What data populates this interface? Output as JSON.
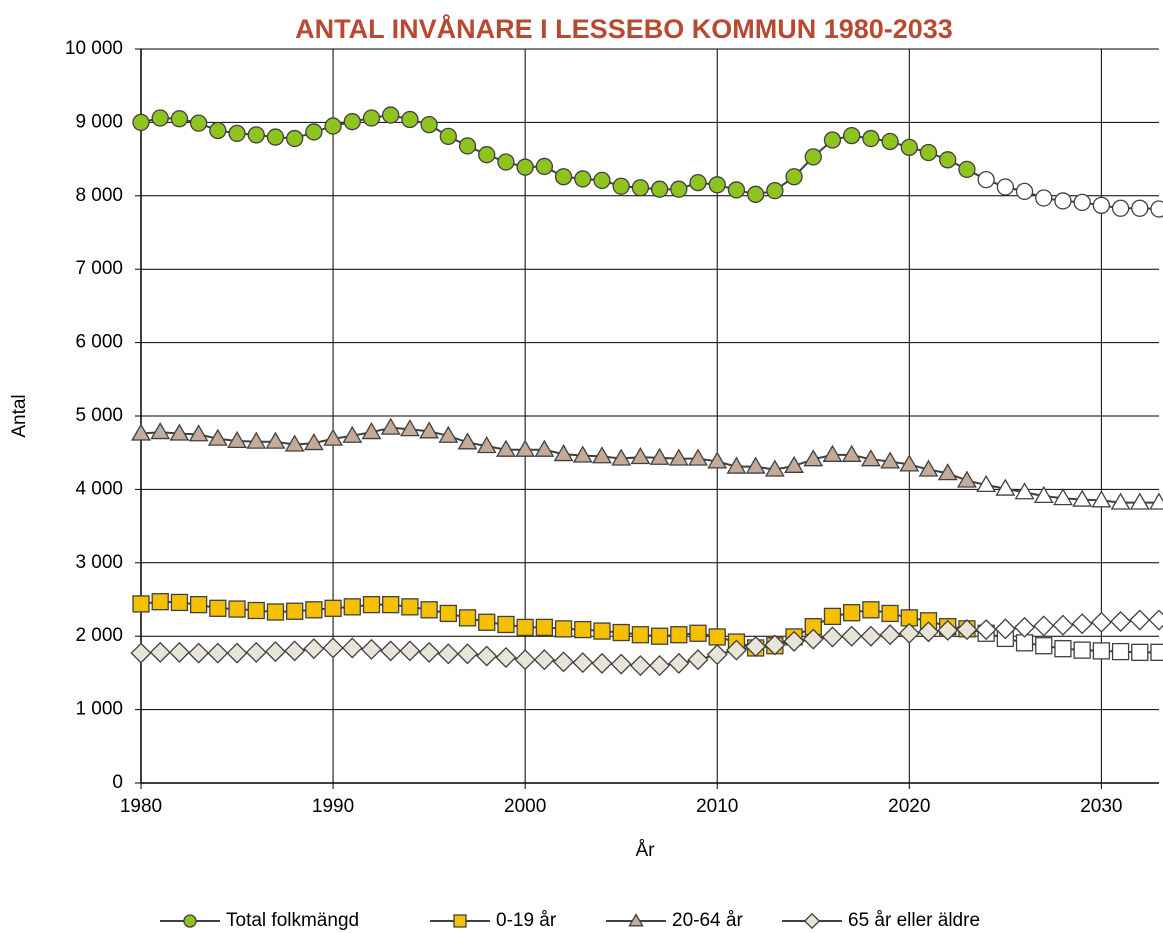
{
  "chart_data": {
    "type": "line",
    "title": "ANTAL INVÅNARE I LESSEBO KOMMUN 1980-2033",
    "x_label": "År",
    "y_label": "Antal",
    "x": [
      1980,
      1981,
      1982,
      1983,
      1984,
      1985,
      1986,
      1987,
      1988,
      1989,
      1990,
      1991,
      1992,
      1993,
      1994,
      1995,
      1996,
      1997,
      1998,
      1999,
      2000,
      2001,
      2002,
      2003,
      2004,
      2005,
      2006,
      2007,
      2008,
      2009,
      2010,
      2011,
      2012,
      2013,
      2014,
      2015,
      2016,
      2017,
      2018,
      2019,
      2020,
      2021,
      2022,
      2023,
      2024,
      2025,
      2026,
      2027,
      2028,
      2029,
      2030,
      2031,
      2032,
      2033
    ],
    "projection_start": 2024,
    "projection_color": "#ffffff",
    "line_color": "#404040",
    "series": [
      {
        "name": "Total folkmängd",
        "color": "#8fc31f",
        "marker": "circle",
        "values": [
          9000,
          9060,
          9050,
          8990,
          8890,
          8850,
          8830,
          8800,
          8780,
          8870,
          8950,
          9010,
          9060,
          9100,
          9040,
          8970,
          8810,
          8680,
          8560,
          8460,
          8390,
          8400,
          8260,
          8230,
          8210,
          8130,
          8110,
          8090,
          8090,
          8180,
          8150,
          8080,
          8020,
          8070,
          8260,
          8530,
          8760,
          8820,
          8780,
          8740,
          8660,
          8590,
          8490,
          8360,
          8220,
          8120,
          8060,
          7970,
          7930,
          7910,
          7870,
          7830,
          7830,
          7820
        ]
      },
      {
        "name": "0-19 år",
        "color": "#f5c000",
        "marker": "square",
        "values": [
          2440,
          2470,
          2460,
          2430,
          2380,
          2370,
          2350,
          2330,
          2340,
          2360,
          2380,
          2400,
          2430,
          2430,
          2400,
          2360,
          2310,
          2250,
          2190,
          2160,
          2120,
          2120,
          2100,
          2090,
          2070,
          2050,
          2020,
          2000,
          2020,
          2040,
          1990,
          1920,
          1840,
          1870,
          1990,
          2130,
          2270,
          2320,
          2360,
          2310,
          2250,
          2210,
          2130,
          2100,
          2040,
          1970,
          1910,
          1870,
          1830,
          1810,
          1800,
          1790,
          1780,
          1780
        ]
      },
      {
        "name": "20-64 år",
        "color": "#c4aa98",
        "marker": "triangle",
        "values": [
          4760,
          4780,
          4760,
          4750,
          4690,
          4660,
          4650,
          4650,
          4610,
          4630,
          4690,
          4730,
          4780,
          4840,
          4820,
          4790,
          4730,
          4640,
          4590,
          4540,
          4540,
          4540,
          4480,
          4460,
          4450,
          4420,
          4440,
          4430,
          4420,
          4420,
          4380,
          4310,
          4310,
          4270,
          4320,
          4410,
          4470,
          4470,
          4410,
          4380,
          4340,
          4270,
          4220,
          4120,
          4060,
          4010,
          3960,
          3910,
          3880,
          3860,
          3850,
          3820,
          3820,
          3820
        ]
      },
      {
        "name": "65 år eller äldre",
        "color": "#e8e4d8",
        "marker": "diamond",
        "values": [
          1770,
          1780,
          1780,
          1770,
          1770,
          1770,
          1780,
          1790,
          1800,
          1830,
          1840,
          1840,
          1820,
          1800,
          1800,
          1780,
          1760,
          1760,
          1730,
          1710,
          1680,
          1680,
          1650,
          1640,
          1630,
          1620,
          1600,
          1600,
          1630,
          1680,
          1750,
          1810,
          1860,
          1880,
          1930,
          1960,
          1990,
          2000,
          2000,
          2020,
          2040,
          2060,
          2080,
          2090,
          2090,
          2100,
          2120,
          2140,
          2150,
          2170,
          2190,
          2200,
          2220,
          2220
        ]
      }
    ],
    "xlim": [
      1980,
      2033
    ],
    "xticks": [
      1980,
      1990,
      2000,
      2010,
      2020,
      2030
    ],
    "ylim": [
      0,
      10000
    ],
    "yticks": [
      0,
      {
        "value": 1000,
        "label": "1 000"
      },
      {
        "value": 2000,
        "label": "2 000"
      },
      {
        "value": 3000,
        "label": "3 000"
      },
      {
        "value": 4000,
        "label": "4 000"
      },
      {
        "value": 5000,
        "label": "5 000"
      },
      {
        "value": 6000,
        "label": "6 000"
      },
      {
        "value": 7000,
        "label": "7 000"
      },
      {
        "value": 8000,
        "label": "8 000"
      },
      {
        "value": 9000,
        "label": "9 000"
      },
      {
        "value": 10000,
        "label": "10 000"
      }
    ],
    "grid": true,
    "legend": "bottom"
  }
}
